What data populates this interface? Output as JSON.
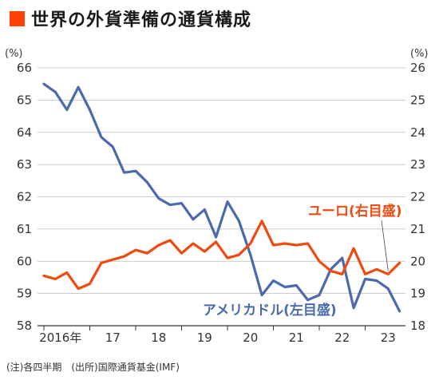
{
  "title": "世界の外貨準備の通貨構成",
  "colors": {
    "title_square": "#ff4000",
    "usd": "#4a6aad",
    "eur": "#f04a0e",
    "grid": "#bbbbbb",
    "axis": "#333333"
  },
  "note": "(注)各四半期　(出所)国際通貨基金(IMF)",
  "chart_data": {
    "type": "line",
    "left_unit": "(%)",
    "right_unit": "(%)",
    "left_ylim": [
      58,
      66
    ],
    "right_ylim": [
      18,
      26
    ],
    "left_ticks": [
      "58",
      "59",
      "60",
      "61",
      "62",
      "63",
      "64",
      "65",
      "66"
    ],
    "right_ticks": [
      "18",
      "19",
      "20",
      "21",
      "22",
      "23",
      "24",
      "25",
      "26"
    ],
    "x_labels": [
      "2016年",
      "17",
      "18",
      "19",
      "20",
      "21",
      "22",
      "23"
    ],
    "x_start_year": 2016,
    "series": [
      {
        "name": "アメリカドル(左目盛)",
        "axis": "left",
        "values": [
          65.5,
          65.25,
          64.7,
          65.4,
          64.7,
          63.85,
          63.55,
          62.75,
          62.8,
          62.45,
          61.95,
          61.75,
          61.8,
          61.3,
          61.6,
          60.75,
          61.85,
          61.25,
          60.2,
          58.95,
          59.4,
          59.2,
          59.25,
          58.8,
          58.95,
          59.75,
          60.1,
          58.55,
          59.45,
          59.4,
          59.15,
          58.45
        ]
      },
      {
        "name": "ユーロ(右目盛)",
        "axis": "right",
        "values": [
          19.55,
          19.45,
          19.65,
          19.15,
          19.3,
          19.95,
          20.05,
          20.15,
          20.35,
          20.25,
          20.5,
          20.65,
          20.25,
          20.55,
          20.3,
          20.6,
          20.1,
          20.2,
          20.55,
          21.25,
          20.5,
          20.55,
          20.5,
          20.55,
          20.0,
          19.7,
          19.6,
          20.4,
          19.6,
          19.75,
          19.6,
          19.95
        ]
      }
    ]
  }
}
